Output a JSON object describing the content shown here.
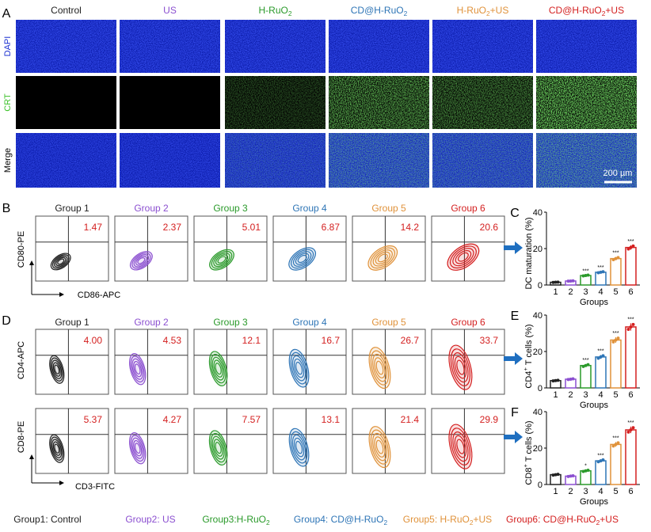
{
  "panel_letters": {
    "a": "A",
    "b": "B",
    "c": "C",
    "d": "D",
    "e": "E",
    "f": "F"
  },
  "colors": {
    "group1": "#222222",
    "group2": "#8b4fd0",
    "group3": "#2a9a2a",
    "group4": "#2e75b6",
    "group5": "#e0923a",
    "group6": "#d42020",
    "dapi": "#1a2fd0",
    "crt": "#3cc22a",
    "arrow": "#1f6fc0"
  },
  "panel_a": {
    "columns": [
      "Control",
      "US",
      "H-RuO|2|",
      "CD@H-RuO|2|",
      "H-RuO|2|+US",
      "CD@H-RuO|2|+US"
    ],
    "rows": [
      "DAPI",
      "CRT",
      "Merge"
    ],
    "crt_intensity": [
      0,
      0,
      0.35,
      0.75,
      0.6,
      0.95
    ],
    "scale_bar": "200 µm"
  },
  "panel_b": {
    "y_axis": "CD80-PE",
    "x_axis": "CD86-APC",
    "groups": [
      "Group 1",
      "Group 2",
      "Group 3",
      "Group 4",
      "Group 5",
      "Group 6"
    ],
    "values": [
      "1.47",
      "2.37",
      "5.01",
      "6.87",
      "14.2",
      "20.6"
    ]
  },
  "panel_d": {
    "row1_y_axis": "CD4-APC",
    "row2_y_axis": "CD8-PE",
    "x_axis": "CD3-FITC",
    "groups": [
      "Group 1",
      "Group 2",
      "Group 3",
      "Group 4",
      "Group 5",
      "Group 6"
    ],
    "cd4_values": [
      "4.00",
      "4.53",
      "12.1",
      "16.7",
      "26.7",
      "33.7"
    ],
    "cd8_values": [
      "5.37",
      "4.27",
      "7.57",
      "13.1",
      "21.4",
      "29.9"
    ]
  },
  "chart_data": [
    {
      "type": "bar",
      "panel": "C",
      "ylabel": "DC maturation (%)",
      "xlabel": "Groups",
      "categories": [
        "1",
        "2",
        "3",
        "4",
        "5",
        "6"
      ],
      "values": [
        1.5,
        2.2,
        5.2,
        7.0,
        14.5,
        20.6
      ],
      "ylim": [
        0,
        40
      ],
      "yticks": [
        0,
        20,
        40
      ],
      "significance": [
        "",
        "",
        "***",
        "***",
        "***",
        "***"
      ]
    },
    {
      "type": "bar",
      "panel": "E",
      "ylabel": "CD4|+| T cells (%)",
      "xlabel": "Groups",
      "categories": [
        "1",
        "2",
        "3",
        "4",
        "5",
        "6"
      ],
      "values": [
        4.0,
        4.8,
        12.3,
        17.0,
        26.3,
        33.5
      ],
      "ylim": [
        0,
        40
      ],
      "yticks": [
        0,
        20,
        40
      ],
      "significance": [
        "",
        "",
        "***",
        "***",
        "***",
        "***"
      ]
    },
    {
      "type": "bar",
      "panel": "F",
      "ylabel": "CD8|+| T cells (%)",
      "xlabel": "Groups",
      "categories": [
        "1",
        "2",
        "3",
        "4",
        "5",
        "6"
      ],
      "values": [
        5.4,
        4.6,
        7.5,
        13.0,
        22.0,
        30.0
      ],
      "ylim": [
        0,
        40
      ],
      "yticks": [
        0,
        20,
        40
      ],
      "significance": [
        "",
        "",
        "*",
        "***",
        "***",
        "***"
      ]
    }
  ],
  "legend": [
    "Group1: Control",
    "Group2: US",
    "Group3:H-RuO|2|",
    "Group4: CD@H-RuO|2|",
    "Group5: H-RuO|2|+US",
    "Group6: CD@H-RuO|2|+US"
  ]
}
